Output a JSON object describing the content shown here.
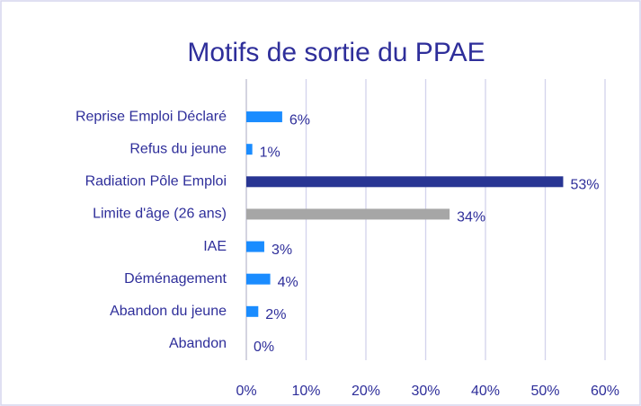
{
  "chart_data": {
    "type": "bar",
    "orientation": "horizontal",
    "title": "Motifs de sortie du PPAE",
    "categories": [
      "Reprise Emploi Déclaré",
      "Refus du jeune",
      "Radiation Pôle Emploi",
      "Limite d'âge (26 ans)",
      "IAE",
      "Déménagement",
      "Abandon du jeune",
      "Abandon"
    ],
    "values": [
      6,
      1,
      53,
      34,
      3,
      4,
      2,
      0
    ],
    "value_labels": [
      "6%",
      "1%",
      "53%",
      "34%",
      "3%",
      "4%",
      "2%",
      "0%"
    ],
    "colors": [
      "#1a8cff",
      "#1a8cff",
      "#283593",
      "#a6a6a6",
      "#1a8cff",
      "#1a8cff",
      "#1a8cff",
      "#1a8cff"
    ],
    "xlim": [
      0,
      60
    ],
    "xticks": [
      {
        "value": 0,
        "label": "0%"
      },
      {
        "value": 10,
        "label": "10%"
      },
      {
        "value": 20,
        "label": "20%"
      },
      {
        "value": 30,
        "label": "30%"
      },
      {
        "value": 40,
        "label": "40%"
      },
      {
        "value": 50,
        "label": "50%"
      },
      {
        "value": 60,
        "label": "60%"
      }
    ],
    "grid": true
  }
}
